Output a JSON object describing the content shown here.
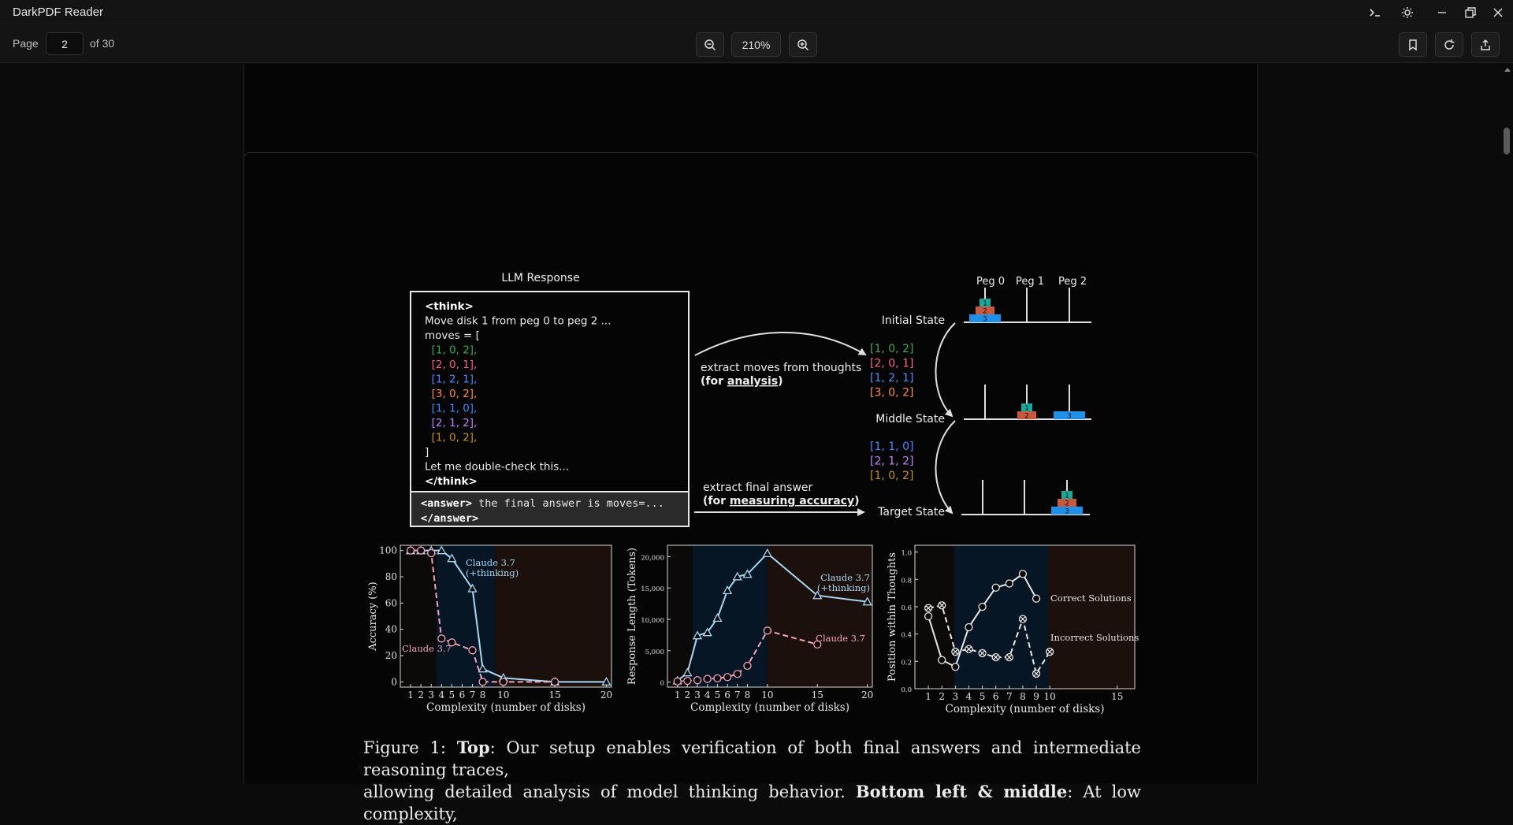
{
  "app": {
    "title": "DarkPDF Reader"
  },
  "toolbar": {
    "page_label": "Page",
    "page_value": "2",
    "page_total": "of 30",
    "zoom": "210%"
  },
  "figure": {
    "llm_response": {
      "title": "LLM Response",
      "lines": [
        {
          "text": "<think>",
          "color": "#ffffff",
          "bold": true
        },
        {
          "text": "Move disk 1 from peg 0 to peg 2 ...",
          "color": "#eaeaea"
        },
        {
          "text": "moves = [",
          "color": "#eaeaea"
        },
        {
          "text": "  [1, 0, 2],",
          "color": "#3ea84e"
        },
        {
          "text": "  [2, 0, 1],",
          "color": "#ff5a8f"
        },
        {
          "text": "  [1, 2, 1],",
          "color": "#4a8cff"
        },
        {
          "text": "  [3, 0, 2],",
          "color": "#ff8c42"
        },
        {
          "text": "  [1, 1, 0],",
          "color": "#3a8bff"
        },
        {
          "text": "  [2, 1, 2],",
          "color": "#c77dff"
        },
        {
          "text": "  [1, 0, 2],",
          "color": "#c8901a"
        },
        {
          "text": "]",
          "color": "#eaeaea"
        },
        {
          "text": "Let me double-check this...",
          "color": "#eaeaea"
        },
        {
          "text": "</think>",
          "color": "#ffffff",
          "bold": true
        }
      ],
      "answer_line1_tag": "<answer>",
      "answer_line1_rest": " the final answer is moves=...",
      "answer_line2": "</answer>"
    },
    "extract_moves": {
      "line1": "extract moves  from thoughts",
      "line2_pre": "(for ",
      "line2_link": "analysis",
      "line2_post": ")"
    },
    "extract_final": {
      "line1": "extract final answer",
      "line2_pre": "(for ",
      "line2_link": "measuring accuracy",
      "line2_post": ")"
    },
    "pegs": [
      "Peg 0",
      "Peg 1",
      "Peg 2"
    ],
    "states": [
      "Initial State",
      "Middle State",
      "Target State"
    ],
    "moves_a": [
      {
        "text": "[1, 0, 2]",
        "color": "#3ea84e"
      },
      {
        "text": "[2, 0, 1]",
        "color": "#ff5a8f"
      },
      {
        "text": "[1, 2, 1]",
        "color": "#4a8cff"
      },
      {
        "text": "[3, 0, 2]",
        "color": "#ff8c42"
      }
    ],
    "moves_b": [
      {
        "text": "[1, 1, 0]",
        "color": "#3a8bff"
      },
      {
        "text": "[2, 1, 2]",
        "color": "#c77dff"
      },
      {
        "text": "[1, 0, 2]",
        "color": "#c8901a"
      }
    ],
    "disk_labels": [
      "1",
      "2",
      "3"
    ],
    "disk_colors": [
      "#19a89a",
      "#c8583e",
      "#1e90e8"
    ]
  },
  "chart_data": [
    {
      "type": "line",
      "xlabel": "Complexity (number of disks)",
      "ylabel": "Accuracy (%)",
      "xlim": [
        0,
        20.5
      ],
      "ylim": [
        -4,
        104
      ],
      "xticks": [
        1,
        2,
        3,
        4,
        5,
        6,
        7,
        8,
        10,
        15,
        20
      ],
      "yticks": [
        0,
        20,
        40,
        60,
        80,
        100
      ],
      "ytick_labels": [
        "0",
        "20",
        "40",
        "60",
        "80",
        "100"
      ],
      "series": [
        {
          "name": "Claude 3.7 (+thinking)",
          "label_lines": [
            "Claude 3.7",
            "(+thinking)"
          ],
          "color": "#a9d8f5",
          "dash": false,
          "marker": "triangle",
          "x": [
            1,
            2,
            3,
            4,
            5,
            7,
            8,
            10,
            15,
            20
          ],
          "y": [
            100,
            100,
            100,
            100,
            94,
            71,
            10,
            3,
            0,
            0
          ]
        },
        {
          "name": "Claude 3.7",
          "label_lines": [
            "Claude 3.7"
          ],
          "color": "#f5a3bd",
          "dash": true,
          "marker": "circle",
          "x": [
            1,
            2,
            3,
            4,
            5,
            7,
            8,
            10,
            15
          ],
          "y": [
            100,
            100,
            98,
            33,
            30,
            24,
            0,
            0,
            0
          ]
        }
      ]
    },
    {
      "type": "line",
      "xlabel": "Complexity (number of disks)",
      "ylabel": "Response Length (Tokens)",
      "xlim": [
        0,
        20.5
      ],
      "ylim": [
        -800,
        21800
      ],
      "xticks": [
        1,
        2,
        3,
        4,
        5,
        6,
        7,
        8,
        10,
        15,
        20
      ],
      "yticks": [
        0,
        5000,
        10000,
        15000,
        20000
      ],
      "ytick_labels": [
        "0",
        "5,000",
        "10,000",
        "15,000",
        "20,000"
      ],
      "series": [
        {
          "name": "Claude 3.7 (+thinking)",
          "label_lines": [
            "Claude 3.7",
            "(+thinking)"
          ],
          "color": "#a9d8f5",
          "dash": false,
          "marker": "triangle",
          "x": [
            1,
            2,
            3,
            4,
            5,
            6,
            7,
            8,
            10,
            15,
            20
          ],
          "y": [
            200,
            1500,
            7400,
            7900,
            10200,
            14600,
            16800,
            17200,
            20500,
            13800,
            12800
          ]
        },
        {
          "name": "Claude 3.7",
          "label_lines": [
            "Claude 3.7"
          ],
          "color": "#f5a3bd",
          "dash": true,
          "marker": "circle",
          "x": [
            1,
            2,
            3,
            4,
            5,
            6,
            7,
            8,
            10,
            15
          ],
          "y": [
            100,
            200,
            300,
            500,
            600,
            800,
            1300,
            2600,
            8200,
            6000
          ]
        }
      ]
    },
    {
      "type": "line",
      "xlabel": "Complexity (number of disks)",
      "ylabel": "Position within Thoughts",
      "xlim": [
        0,
        16.3
      ],
      "ylim": [
        0,
        1.05
      ],
      "xticks": [
        1,
        2,
        3,
        4,
        5,
        6,
        7,
        8,
        9,
        10,
        15
      ],
      "yticks": [
        0,
        0.2,
        0.4,
        0.6,
        0.8,
        1.0
      ],
      "ytick_labels": [
        "0.0",
        "0.2",
        "0.4",
        "0.6",
        "0.8",
        "1.0"
      ],
      "series": [
        {
          "name": "Correct Solutions",
          "label_lines": [
            "Correct Solutions"
          ],
          "color": "#e8e8e8",
          "dash": false,
          "marker": "circle",
          "x": [
            1,
            2,
            3,
            4,
            5,
            6,
            7,
            8,
            9
          ],
          "y": [
            0.53,
            0.21,
            0.16,
            0.45,
            0.6,
            0.74,
            0.77,
            0.84,
            0.66
          ]
        },
        {
          "name": "Incorrect Solutions",
          "label_lines": [
            "Incorrect Solutions"
          ],
          "color": "#e8e8e8",
          "dash": true,
          "marker": "cross",
          "x": [
            1,
            2,
            3,
            4,
            5,
            6,
            7,
            8,
            9,
            10
          ],
          "y": [
            0.59,
            0.61,
            0.27,
            0.29,
            0.26,
            0.23,
            0.23,
            0.51,
            0.11,
            0.27
          ]
        }
      ]
    }
  ],
  "caption": {
    "line1_pre": "Figure 1:  ",
    "line1_bold": "Top",
    "line1_post": ": Our setup enables verification of both final answers and intermediate reasoning traces,",
    "line2_pre": "allowing detailed analysis of model thinking behavior. ",
    "line2_bold": "Bottom left & middle",
    "line2_post": ": At low complexity,"
  }
}
